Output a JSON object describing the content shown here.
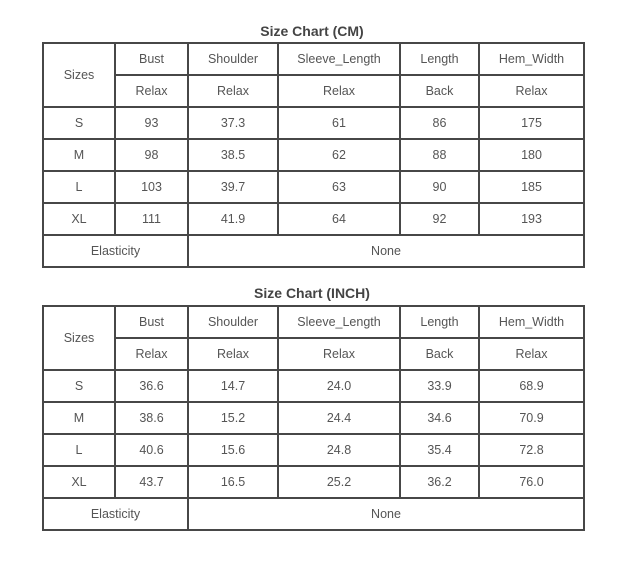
{
  "charts": [
    {
      "title": "Size Chart (CM)",
      "header_top": [
        "Sizes",
        "Bust",
        "Shoulder",
        "Sleeve_Length",
        "Length",
        "Hem_Width"
      ],
      "header_sub": [
        "Relax",
        "Relax",
        "Relax",
        "Back",
        "Relax"
      ],
      "rows": [
        [
          "S",
          "93",
          "37.3",
          "61",
          "86",
          "175"
        ],
        [
          "M",
          "98",
          "38.5",
          "62",
          "88",
          "180"
        ],
        [
          "L",
          "103",
          "39.7",
          "63",
          "90",
          "185"
        ],
        [
          "XL",
          "111",
          "41.9",
          "64",
          "92",
          "193"
        ]
      ],
      "footer": {
        "label": "Elasticity",
        "value": "None"
      }
    },
    {
      "title": "Size Chart (INCH)",
      "header_top": [
        "Sizes",
        "Bust",
        "Shoulder",
        "Sleeve_Length",
        "Length",
        "Hem_Width"
      ],
      "header_sub": [
        "Relax",
        "Relax",
        "Relax",
        "Back",
        "Relax"
      ],
      "rows": [
        [
          "S",
          "36.6",
          "14.7",
          "24.0",
          "33.9",
          "68.9"
        ],
        [
          "M",
          "38.6",
          "15.2",
          "24.4",
          "34.6",
          "70.9"
        ],
        [
          "L",
          "40.6",
          "15.6",
          "24.8",
          "35.4",
          "72.8"
        ],
        [
          "XL",
          "43.7",
          "16.5",
          "25.2",
          "36.2",
          "76.0"
        ]
      ],
      "footer": {
        "label": "Elasticity",
        "value": "None"
      }
    }
  ]
}
